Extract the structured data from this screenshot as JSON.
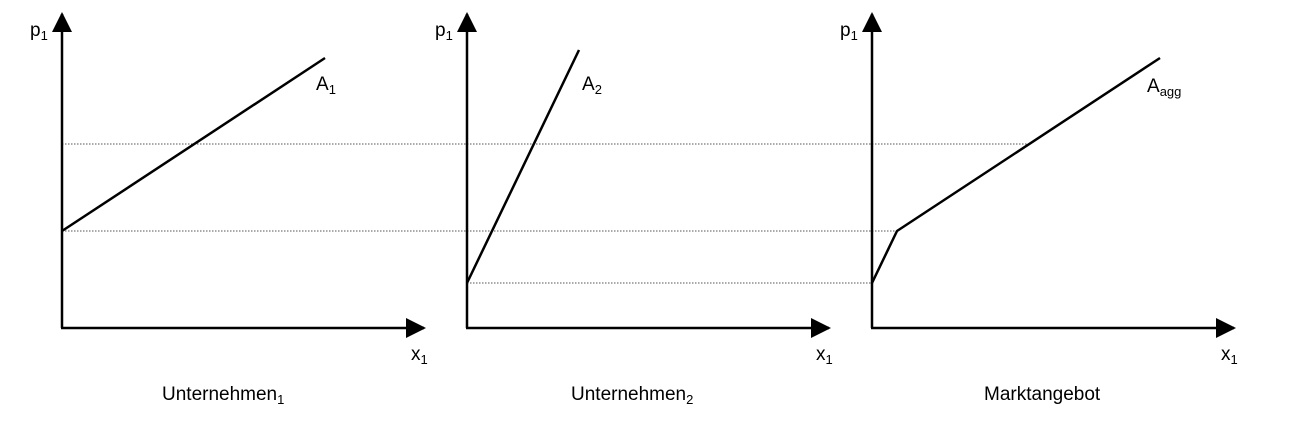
{
  "panels": [
    {
      "y_axis_label": "p",
      "y_axis_sub": "1",
      "x_axis_label": "x",
      "x_axis_sub": "1",
      "curve_label": "A",
      "curve_sub": "1",
      "caption": "Unternehmen",
      "caption_sub": "1"
    },
    {
      "y_axis_label": "p",
      "y_axis_sub": "1",
      "x_axis_label": "x",
      "x_axis_sub": "1",
      "curve_label": "A",
      "curve_sub": "2",
      "caption": "Unternehmen",
      "caption_sub": "2"
    },
    {
      "y_axis_label": "p",
      "y_axis_sub": "1",
      "x_axis_label": "x",
      "x_axis_sub": "1",
      "curve_label": "A",
      "curve_sub": "agg",
      "caption": "Marktangebot",
      "caption_sub": ""
    }
  ],
  "colors": {
    "line": "#000000",
    "guide": "#555555",
    "background": "#ffffff"
  }
}
